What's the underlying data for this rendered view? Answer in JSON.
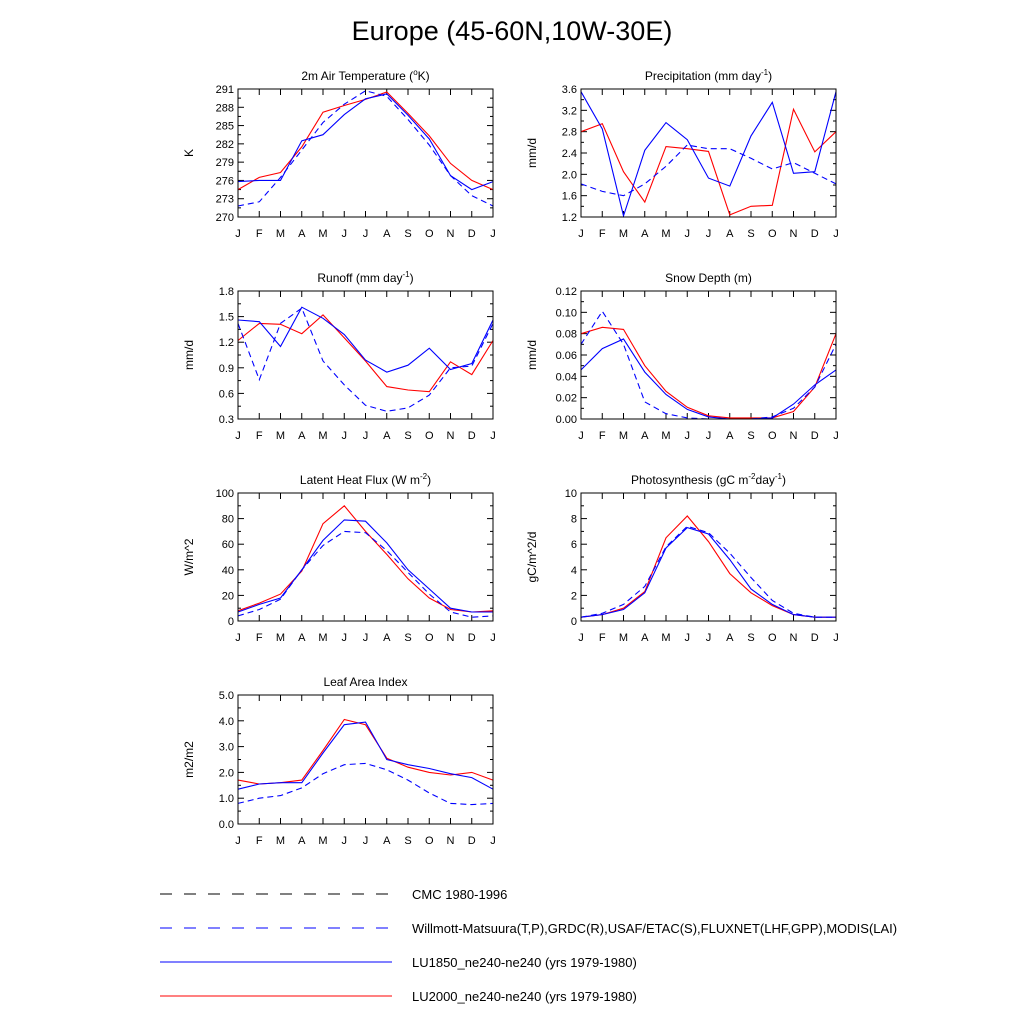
{
  "page": {
    "title": "Europe (45-60N,10W-30E)"
  },
  "legend": {
    "items": [
      {
        "label": "CMC 1980-1996",
        "color": "#000000",
        "dash": true
      },
      {
        "label": "Willmott-Matsuura(T,P),GRDC(R),USAF/ETAC(S),FLUXNET(LHF,GPP),MODIS(LAI)",
        "color": "#0000ff",
        "dash": true
      },
      {
        "label": "LU1850_ne240-ne240 (yrs 1979-1980)",
        "color": "#0000ff",
        "dash": false
      },
      {
        "label": "LU2000_ne240-ne240 (yrs 1979-1980)",
        "color": "#ff0000",
        "dash": false
      }
    ]
  },
  "chart_data": [
    {
      "type": "line",
      "title": "2m Air Temperature (",
      "title_sup": "o",
      "title_after": "K)",
      "ylabel": "K",
      "categories": [
        "J",
        "F",
        "M",
        "A",
        "M",
        "J",
        "J",
        "A",
        "S",
        "O",
        "N",
        "D",
        "J"
      ],
      "ylim": [
        270,
        291
      ],
      "yticks": [
        270,
        273,
        276,
        279,
        282,
        285,
        288,
        291
      ],
      "ytick_labels": [
        "270",
        "273",
        "276",
        "279",
        "282",
        "285",
        "288",
        "291"
      ],
      "series": [
        {
          "color": "#ff0000",
          "dash": false,
          "values": [
            274.5,
            276.5,
            277.3,
            281.5,
            287.2,
            288.3,
            289.3,
            290.5,
            287.0,
            283.3,
            278.8,
            276.0,
            274.5
          ]
        },
        {
          "color": "#0000ff",
          "dash": false,
          "values": [
            275.8,
            276.0,
            276.0,
            282.5,
            283.5,
            286.8,
            289.4,
            290.2,
            286.7,
            282.8,
            276.8,
            274.5,
            275.8
          ]
        },
        {
          "color": "#0000ff",
          "dash": true,
          "values": [
            271.8,
            272.5,
            276.5,
            281.0,
            285.5,
            288.5,
            290.7,
            289.8,
            286.0,
            281.8,
            276.8,
            273.5,
            271.8
          ]
        }
      ]
    },
    {
      "type": "line",
      "title": "Precipitation (mm day",
      "title_sup": "-1",
      "title_after": ")",
      "ylabel": "mm/d",
      "categories": [
        "J",
        "F",
        "M",
        "A",
        "M",
        "J",
        "J",
        "A",
        "S",
        "O",
        "N",
        "D",
        "J"
      ],
      "ylim": [
        1.2,
        3.6
      ],
      "yticks": [
        1.2,
        1.6,
        2.0,
        2.4,
        2.8,
        3.2,
        3.6
      ],
      "ytick_labels": [
        "1.2",
        "1.6",
        "2.0",
        "2.4",
        "2.8",
        "3.2",
        "3.6"
      ],
      "series": [
        {
          "color": "#ff0000",
          "dash": false,
          "values": [
            2.8,
            2.95,
            2.05,
            1.48,
            2.52,
            2.48,
            2.43,
            1.24,
            1.4,
            1.42,
            3.22,
            2.42,
            2.8
          ]
        },
        {
          "color": "#0000ff",
          "dash": false,
          "values": [
            3.55,
            2.85,
            1.22,
            2.45,
            2.97,
            2.65,
            1.93,
            1.78,
            2.72,
            3.35,
            2.02,
            2.05,
            3.55
          ]
        },
        {
          "color": "#0000ff",
          "dash": true,
          "values": [
            1.82,
            1.68,
            1.6,
            1.82,
            2.15,
            2.55,
            2.48,
            2.48,
            2.3,
            2.1,
            2.22,
            2.02,
            1.82
          ]
        }
      ]
    },
    {
      "type": "line",
      "title": "Runoff (mm day",
      "title_sup": "-1",
      "title_after": ")",
      "ylabel": "mm/d",
      "categories": [
        "J",
        "F",
        "M",
        "A",
        "M",
        "J",
        "J",
        "A",
        "S",
        "O",
        "N",
        "D",
        "J"
      ],
      "ylim": [
        0.3,
        1.8
      ],
      "yticks": [
        0.3,
        0.6,
        0.9,
        1.2,
        1.5,
        1.8
      ],
      "ytick_labels": [
        "0.3",
        "0.6",
        "0.9",
        "1.2",
        "1.5",
        "1.8"
      ],
      "series": [
        {
          "color": "#ff0000",
          "dash": false,
          "values": [
            1.22,
            1.42,
            1.41,
            1.3,
            1.52,
            1.25,
            0.98,
            0.68,
            0.64,
            0.62,
            0.97,
            0.82,
            1.22
          ]
        },
        {
          "color": "#0000ff",
          "dash": false,
          "values": [
            1.46,
            1.44,
            1.15,
            1.61,
            1.48,
            1.29,
            0.99,
            0.85,
            0.93,
            1.13,
            0.88,
            0.95,
            1.46
          ]
        },
        {
          "color": "#0000ff",
          "dash": true,
          "values": [
            1.42,
            0.76,
            1.42,
            1.6,
            0.98,
            0.7,
            0.46,
            0.39,
            0.43,
            0.58,
            0.9,
            0.92,
            1.42
          ]
        }
      ]
    },
    {
      "type": "line",
      "title": "Snow Depth (m)",
      "title_sup": "",
      "title_after": "",
      "ylabel": "mm/d",
      "categories": [
        "J",
        "F",
        "M",
        "A",
        "M",
        "J",
        "J",
        "A",
        "S",
        "O",
        "N",
        "D",
        "J"
      ],
      "ylim": [
        0.0,
        0.12
      ],
      "yticks": [
        0.0,
        0.02,
        0.04,
        0.06,
        0.08,
        0.1,
        0.12
      ],
      "ytick_labels": [
        "0.00",
        "0.02",
        "0.04",
        "0.06",
        "0.08",
        "0.10",
        "0.12"
      ],
      "series": [
        {
          "color": "#ff0000",
          "dash": false,
          "values": [
            0.08,
            0.086,
            0.084,
            0.05,
            0.026,
            0.011,
            0.003,
            0.001,
            0.001,
            0.001,
            0.007,
            0.03,
            0.08
          ]
        },
        {
          "color": "#0000ff",
          "dash": false,
          "values": [
            0.046,
            0.066,
            0.075,
            0.044,
            0.023,
            0.009,
            0.002,
            0.0,
            0.0,
            0.001,
            0.014,
            0.032,
            0.046
          ]
        },
        {
          "color": "#0000ff",
          "dash": true,
          "values": [
            0.07,
            0.101,
            0.07,
            0.016,
            0.005,
            0.001,
            0.0,
            0.0,
            0.0,
            0.002,
            0.01,
            0.03,
            0.07
          ]
        },
        {
          "color": "#000000",
          "dash": true,
          "values": [
            0,
            0,
            0,
            0,
            0,
            0,
            0,
            0,
            0,
            0,
            0,
            0,
            0
          ]
        }
      ]
    },
    {
      "type": "line",
      "title": "Latent Heat Flux (W m",
      "title_sup": "-2",
      "title_after": ")",
      "ylabel": "W/m^2",
      "categories": [
        "J",
        "F",
        "M",
        "A",
        "M",
        "J",
        "J",
        "A",
        "S",
        "O",
        "N",
        "D",
        "J"
      ],
      "ylim": [
        0,
        100
      ],
      "yticks": [
        0,
        20,
        40,
        60,
        80,
        100
      ],
      "ytick_labels": [
        "0",
        "20",
        "40",
        "60",
        "80",
        "100"
      ],
      "series": [
        {
          "color": "#ff0000",
          "dash": false,
          "values": [
            8,
            14,
            21,
            39,
            76,
            90,
            70,
            52,
            33,
            18,
            9,
            7,
            8
          ]
        },
        {
          "color": "#0000ff",
          "dash": false,
          "values": [
            7,
            13,
            18,
            40,
            63,
            79,
            78,
            61,
            40,
            25,
            10,
            7,
            7
          ]
        },
        {
          "color": "#0000ff",
          "dash": true,
          "values": [
            4,
            9,
            17,
            40,
            59,
            70,
            69,
            55,
            38,
            21,
            7,
            3,
            4
          ]
        }
      ]
    },
    {
      "type": "line",
      "title": "Photosynthesis (gC m",
      "title_sup": "-2",
      "title_after": "day",
      "title_sup2": "-1",
      "title_after2": ")",
      "ylabel": "gC/m^2/d",
      "categories": [
        "J",
        "F",
        "M",
        "A",
        "M",
        "J",
        "J",
        "A",
        "S",
        "O",
        "N",
        "D",
        "J"
      ],
      "ylim": [
        0,
        10
      ],
      "yticks": [
        0,
        2,
        4,
        6,
        8,
        10
      ],
      "ytick_labels": [
        "0",
        "2",
        "4",
        "6",
        "8",
        "10"
      ],
      "series": [
        {
          "color": "#ff0000",
          "dash": false,
          "values": [
            0.3,
            0.5,
            1.0,
            2.3,
            6.5,
            8.2,
            6.2,
            3.7,
            2.2,
            1.2,
            0.5,
            0.3,
            0.3
          ]
        },
        {
          "color": "#0000ff",
          "dash": false,
          "values": [
            0.3,
            0.5,
            0.9,
            2.2,
            5.7,
            7.3,
            6.8,
            4.8,
            2.5,
            1.3,
            0.5,
            0.3,
            0.3
          ]
        },
        {
          "color": "#0000ff",
          "dash": true,
          "values": [
            0.3,
            0.6,
            1.3,
            2.7,
            5.8,
            7.4,
            6.9,
            5.3,
            3.4,
            1.6,
            0.6,
            0.3,
            0.3
          ]
        }
      ]
    },
    {
      "type": "line",
      "title": "Leaf Area Index",
      "title_sup": "",
      "title_after": "",
      "ylabel": "m2/m2",
      "categories": [
        "J",
        "F",
        "M",
        "A",
        "M",
        "J",
        "J",
        "A",
        "S",
        "O",
        "N",
        "D",
        "J"
      ],
      "ylim": [
        0.0,
        5.0
      ],
      "yticks": [
        0.0,
        1.0,
        2.0,
        3.0,
        4.0,
        5.0
      ],
      "ytick_labels": [
        "0.0",
        "1.0",
        "2.0",
        "3.0",
        "4.0",
        "5.0"
      ],
      "series": [
        {
          "color": "#ff0000",
          "dash": false,
          "values": [
            1.7,
            1.55,
            1.6,
            1.7,
            2.85,
            4.05,
            3.85,
            2.55,
            2.2,
            2.0,
            1.9,
            2.0,
            1.7
          ]
        },
        {
          "color": "#0000ff",
          "dash": false,
          "values": [
            1.35,
            1.55,
            1.6,
            1.6,
            2.75,
            3.85,
            3.95,
            2.5,
            2.3,
            2.15,
            1.95,
            1.8,
            1.35
          ]
        },
        {
          "color": "#0000ff",
          "dash": true,
          "values": [
            0.8,
            1.0,
            1.1,
            1.4,
            1.95,
            2.3,
            2.35,
            2.1,
            1.7,
            1.2,
            0.8,
            0.75,
            0.8
          ]
        }
      ]
    }
  ]
}
